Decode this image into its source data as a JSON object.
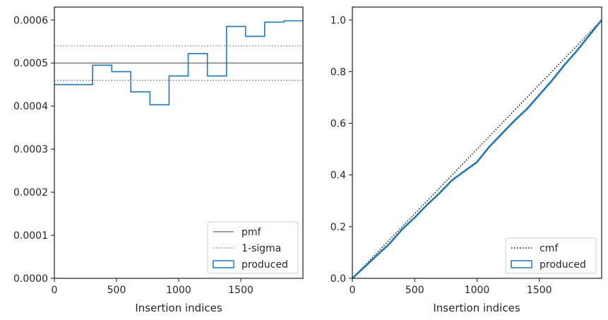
{
  "chart_data": [
    {
      "type": "step",
      "xlabel": "Insertion indices",
      "ylabel": "",
      "xlim": [
        0,
        2000
      ],
      "ylim": [
        0,
        0.00063
      ],
      "x_ticks": [
        0,
        500,
        1000,
        1500
      ],
      "y_ticks": [
        0,
        0.0001,
        0.0002,
        0.0003,
        0.0004,
        0.0005,
        0.0006
      ],
      "y_tick_labels": [
        "0.0000",
        "0.0001",
        "0.0002",
        "0.0003",
        "0.0004",
        "0.0005",
        "0.0006"
      ],
      "pmf": 0.0005,
      "sigma_band": [
        0.00046,
        0.00054
      ],
      "bin_edges": [
        0,
        308,
        462,
        615,
        769,
        923,
        1077,
        1231,
        1385,
        1538,
        1692,
        1846,
        2000
      ],
      "values": [
        0.00045,
        0.000495,
        0.00048,
        0.000433,
        0.000403,
        0.00047,
        0.000522,
        0.00047,
        0.000585,
        0.000562,
        0.000595,
        0.000598
      ],
      "legend": {
        "position": "lower right",
        "entries": [
          {
            "label": "pmf",
            "style": "solid-line",
            "color": "#808080"
          },
          {
            "label": "1-sigma",
            "style": "dotted-line",
            "color": "#808080"
          },
          {
            "label": "produced",
            "style": "box",
            "color": "#1f77b4"
          }
        ]
      }
    },
    {
      "type": "line",
      "xlabel": "Insertion indices",
      "ylabel": "",
      "xlim": [
        0,
        2000
      ],
      "ylim": [
        0,
        1.05
      ],
      "x_ticks": [
        0,
        500,
        1000,
        1500
      ],
      "y_ticks": [
        0,
        0.2,
        0.4,
        0.6,
        0.8,
        1.0
      ],
      "y_tick_labels": [
        "0.0",
        "0.2",
        "0.4",
        "0.6",
        "0.8",
        "1.0"
      ],
      "cmf_line": {
        "x": [
          0,
          2000
        ],
        "y": [
          0,
          1.0
        ]
      },
      "produced": {
        "x": [
          0,
          100,
          200,
          300,
          400,
          500,
          600,
          700,
          800,
          900,
          1000,
          1100,
          1200,
          1300,
          1400,
          1500,
          1600,
          1700,
          1800,
          1900,
          2000
        ],
        "y": [
          0,
          0.045,
          0.09,
          0.135,
          0.19,
          0.235,
          0.285,
          0.33,
          0.38,
          0.415,
          0.45,
          0.51,
          0.56,
          0.61,
          0.655,
          0.71,
          0.765,
          0.825,
          0.88,
          0.94,
          1.0
        ]
      },
      "legend": {
        "position": "lower right",
        "entries": [
          {
            "label": "cmf",
            "style": "dotted-line",
            "color": "#000000"
          },
          {
            "label": "produced",
            "style": "box",
            "color": "#1f77b4"
          }
        ]
      }
    }
  ]
}
